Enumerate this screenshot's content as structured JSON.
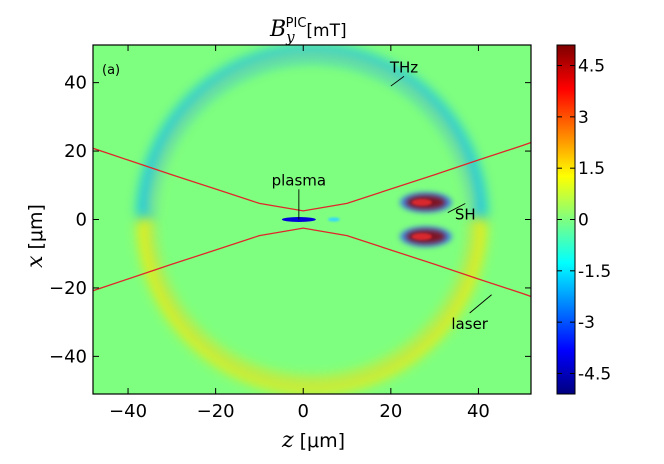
{
  "chart_data": {
    "type": "heatmap",
    "title": "B_y^PIC [mT]",
    "title_parts": {
      "symbol": "B",
      "subscript": "y",
      "superscript": "PIC",
      "unit": "[mT]"
    },
    "xlabel": {
      "symbol": "z",
      "unit": "[μm]"
    },
    "ylabel": {
      "symbol": "x",
      "unit": "[μm]"
    },
    "xlim": [
      -48,
      52
    ],
    "ylim": [
      -51,
      51
    ],
    "xticks": [
      -40,
      -20,
      0,
      20,
      40
    ],
    "xtick_labels": [
      "−40",
      "−20",
      "0",
      "20",
      "40"
    ],
    "yticks": [
      40,
      20,
      0,
      -20,
      -40
    ],
    "ytick_labels": [
      "40",
      "20",
      "0",
      "−20",
      "−40"
    ],
    "panel_label": "(a)",
    "colorbar": {
      "range": [
        -5.1,
        5.1
      ],
      "ticks": [
        4.5,
        3,
        1.5,
        0,
        -1.5,
        -3,
        -4.5
      ],
      "tick_labels": [
        "4.5",
        "3",
        "1.5",
        "0",
        "-1.5",
        "-3",
        "-4.5"
      ],
      "colormap": "jet",
      "colors": [
        "#00007f",
        "#0000ff",
        "#007fff",
        "#00ffff",
        "#7fff7f",
        "#ffff00",
        "#ff7f00",
        "#ff0000",
        "#7f0000"
      ]
    },
    "background_value": 0,
    "features": [
      {
        "name": "THz ring",
        "center_z": 2,
        "center_x": 0,
        "radius_um": 38,
        "top_value": -2,
        "bottom_value": 1.5
      },
      {
        "name": "plasma",
        "center_z": -1,
        "center_x": 0,
        "value": -4.2
      },
      {
        "name": "SH upper lobe",
        "center_z": 28,
        "center_x": 5,
        "value": 5
      },
      {
        "name": "SH lower lobe",
        "center_z": 28,
        "center_x": -5,
        "value": 5
      }
    ],
    "laser_envelope": {
      "waist_um": 2.5,
      "divergence": 0.43,
      "color": "#e0262b",
      "z": [
        -48,
        -40,
        -30,
        -20,
        -10,
        0,
        10,
        20,
        30,
        40,
        50,
        52
      ],
      "x_upper": [
        20.8,
        17.4,
        13.1,
        8.9,
        4.7,
        2.5,
        4.7,
        8.9,
        13.1,
        17.4,
        21.6,
        22.5
      ],
      "x_lower": [
        -20.8,
        -17.4,
        -13.1,
        -8.9,
        -4.7,
        -2.5,
        -4.7,
        -8.9,
        -13.1,
        -17.4,
        -21.6,
        -22.5
      ]
    },
    "annotations": [
      {
        "text": "THz",
        "z": 23,
        "x": 43,
        "arrow_to": [
          20,
          39
        ]
      },
      {
        "text": "plasma",
        "z": -1,
        "x": 10,
        "arrow_to": [
          -1,
          0
        ]
      },
      {
        "text": "SH",
        "z": 37,
        "x": 0,
        "arrow_to": [
          33,
          2
        ]
      },
      {
        "text": "laser",
        "z": 38,
        "x": -32,
        "arrow_to": [
          43,
          -22
        ]
      }
    ]
  }
}
